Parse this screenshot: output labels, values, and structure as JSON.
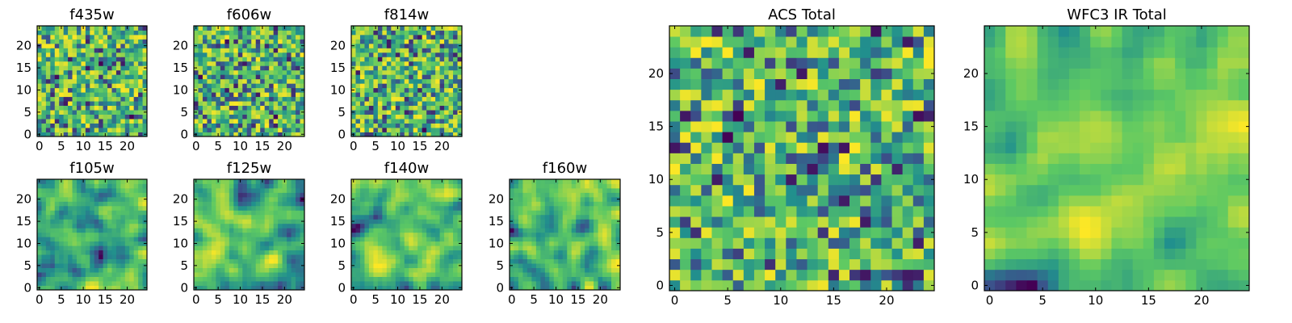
{
  "figure": {
    "colormap": "viridis",
    "colormap_stops": [
      "#440154",
      "#3b528b",
      "#21908d",
      "#5dc963",
      "#fde725"
    ]
  },
  "chart_data": [
    {
      "type": "heatmap",
      "title": "f435w",
      "grid_size": 25,
      "xlim": [
        0,
        24
      ],
      "ylim": [
        0,
        24
      ],
      "xticks": [
        "0",
        "5",
        "10",
        "15",
        "20"
      ],
      "yticks": [
        "0",
        "5",
        "10",
        "15",
        "20"
      ],
      "texture": "noisy",
      "seed": 11
    },
    {
      "type": "heatmap",
      "title": "f606w",
      "grid_size": 25,
      "xlim": [
        0,
        24
      ],
      "ylim": [
        0,
        24
      ],
      "xticks": [
        "0",
        "5",
        "10",
        "15",
        "20"
      ],
      "yticks": [
        "0",
        "5",
        "10",
        "15",
        "20"
      ],
      "texture": "noisy",
      "seed": 23
    },
    {
      "type": "heatmap",
      "title": "f814w",
      "grid_size": 25,
      "xlim": [
        0,
        24
      ],
      "ylim": [
        0,
        24
      ],
      "xticks": [
        "0",
        "5",
        "10",
        "15",
        "20"
      ],
      "yticks": [
        "0",
        "5",
        "10",
        "15",
        "20"
      ],
      "texture": "noisy",
      "seed": 37
    },
    {
      "type": "heatmap",
      "title": "f105w",
      "grid_size": 25,
      "xlim": [
        0,
        24
      ],
      "ylim": [
        0,
        24
      ],
      "xticks": [
        "0",
        "5",
        "10",
        "15",
        "20"
      ],
      "yticks": [
        "0",
        "5",
        "10",
        "15",
        "20"
      ],
      "texture": "smooth",
      "seed": 41
    },
    {
      "type": "heatmap",
      "title": "f125w",
      "grid_size": 25,
      "xlim": [
        0,
        24
      ],
      "ylim": [
        0,
        24
      ],
      "xticks": [
        "0",
        "5",
        "10",
        "15",
        "20"
      ],
      "yticks": [
        "0",
        "5",
        "10",
        "15",
        "20"
      ],
      "texture": "smooth",
      "seed": 53
    },
    {
      "type": "heatmap",
      "title": "f140w",
      "grid_size": 25,
      "xlim": [
        0,
        24
      ],
      "ylim": [
        0,
        24
      ],
      "xticks": [
        "0",
        "5",
        "10",
        "15",
        "20"
      ],
      "yticks": [
        "0",
        "5",
        "10",
        "15",
        "20"
      ],
      "texture": "smooth",
      "seed": 67
    },
    {
      "type": "heatmap",
      "title": "f160w",
      "grid_size": 25,
      "xlim": [
        0,
        24
      ],
      "ylim": [
        0,
        24
      ],
      "xticks": [
        "0",
        "5",
        "10",
        "15",
        "20"
      ],
      "yticks": [
        "0",
        "5",
        "10",
        "15",
        "20"
      ],
      "texture": "smooth",
      "seed": 79
    },
    {
      "type": "heatmap",
      "title": "ACS Total",
      "grid_size": 25,
      "xlim": [
        0,
        24
      ],
      "ylim": [
        0,
        24
      ],
      "xticks": [
        "0",
        "5",
        "10",
        "15",
        "20"
      ],
      "yticks": [
        "0",
        "5",
        "10",
        "15",
        "20"
      ],
      "texture": "noisy",
      "seed": 83
    },
    {
      "type": "heatmap",
      "title": "WFC3 IR Total",
      "grid_size": 25,
      "xlim": [
        0,
        24
      ],
      "ylim": [
        0,
        24
      ],
      "xticks": [
        "0",
        "5",
        "10",
        "15",
        "20"
      ],
      "yticks": [
        "0",
        "5",
        "10",
        "15",
        "20"
      ],
      "texture": "smooth",
      "seed": 97
    }
  ]
}
